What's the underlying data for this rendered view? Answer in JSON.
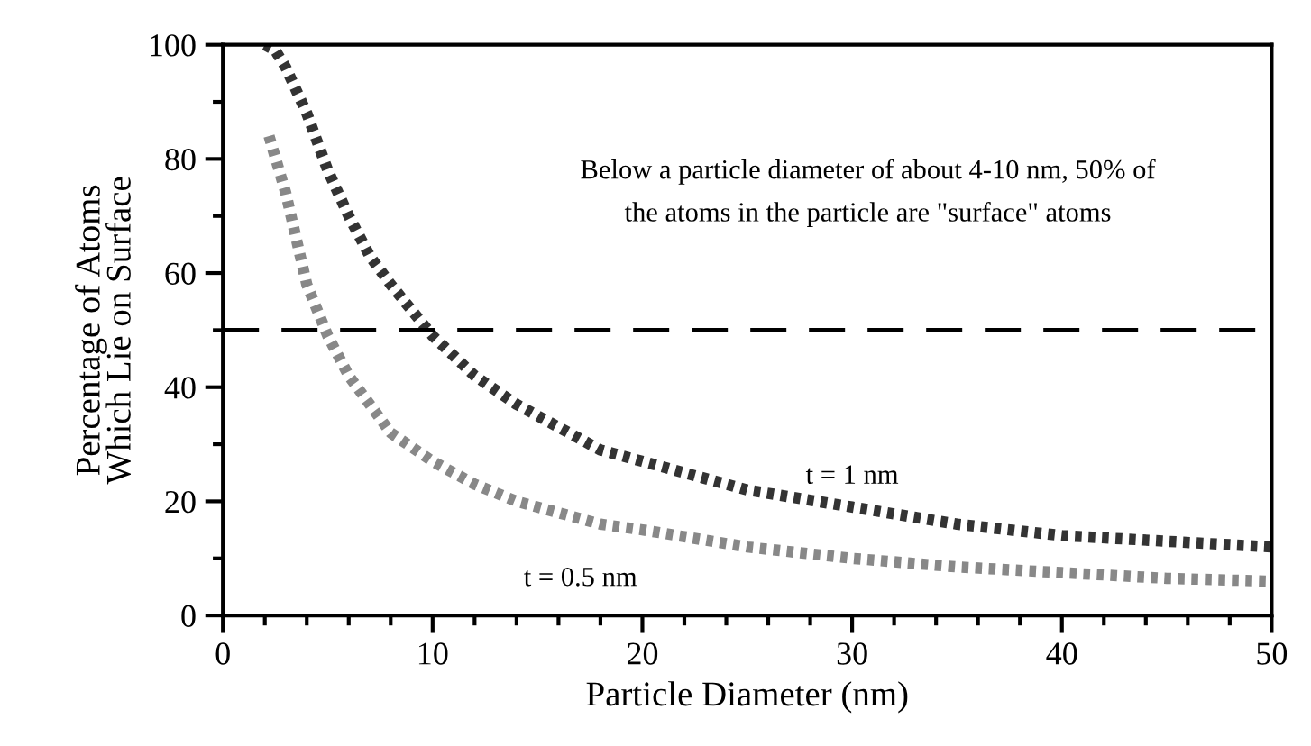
{
  "chart_data": {
    "type": "line",
    "xlabel": "Particle Diameter (nm)",
    "ylabel": "Percentage of Atoms\nWhich Lie on Surface",
    "xlim": [
      0,
      50
    ],
    "xticks": [
      0,
      10,
      20,
      30,
      40,
      50
    ],
    "ylim": [
      0,
      100
    ],
    "yticks": [
      0,
      20,
      40,
      60,
      80,
      100
    ],
    "grid": false,
    "legend": false,
    "line_style": "dotted",
    "marker": "none",
    "series": [
      {
        "name": "t = 1 nm",
        "color": "#333333",
        "x": [
          2,
          2.5,
          3,
          4,
          5,
          6,
          7,
          8,
          10,
          12,
          14,
          16,
          18,
          20,
          25,
          30,
          35,
          40,
          45,
          50
        ],
        "values": [
          100,
          99,
          96,
          88,
          78,
          70,
          63,
          58,
          49,
          42,
          37,
          33,
          29,
          27,
          22,
          19,
          16,
          14,
          13,
          12
        ]
      },
      {
        "name": "t = 0.5 nm",
        "color": "#888888",
        "x": [
          2.2,
          3,
          4,
          5,
          6,
          7,
          8,
          10,
          12,
          14,
          16,
          18,
          20,
          25,
          30,
          35,
          40,
          45,
          50
        ],
        "values": [
          84,
          74,
          58,
          49,
          42,
          37,
          32,
          27,
          23,
          20,
          18,
          16,
          15,
          12,
          10,
          8.5,
          7.5,
          6.5,
          6
        ]
      }
    ],
    "ref_lines": [
      {
        "axis": "y",
        "value": 50,
        "color": "#000000",
        "line_style": "dashed"
      }
    ],
    "annotations": [
      "Below a particle diameter of about 4-10 nm, 50% of\nthe atoms in the particle are \"surface\" atoms"
    ]
  }
}
